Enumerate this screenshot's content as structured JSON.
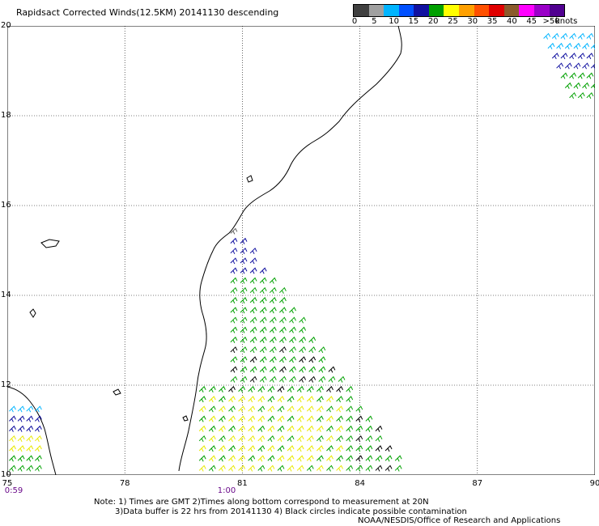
{
  "title": "Rapidsact Corrected Winds(12.5KM) 20141130 descending",
  "scale": {
    "labels": [
      "0",
      "5",
      "10",
      "15",
      "20",
      "25",
      "30",
      "35",
      "40",
      "45",
      ">50"
    ],
    "unit": "knots",
    "colors": [
      "#404040",
      "#a0a0a0",
      "#00b4ff",
      "#0050ff",
      "#1010a0",
      "#00a000",
      "#ffff00",
      "#ffa000",
      "#ff5000",
      "#e00000",
      "#8b5a2b",
      "#ff00ff",
      "#9a00c8",
      "#500090"
    ]
  },
  "axes": {
    "lon_ticks": [
      "75",
      "78",
      "81",
      "84",
      "87",
      "90"
    ],
    "lat_ticks": [
      "10",
      "12",
      "14",
      "16",
      "18",
      "20"
    ],
    "lon_range": [
      75,
      90
    ],
    "lat_range": [
      10,
      20
    ],
    "grid": true
  },
  "times": [
    {
      "label": "0:59",
      "lon": 75
    },
    {
      "label": "1:00",
      "lon": 80.6
    }
  ],
  "notes": {
    "line1": "Note: 1) Times are GMT 2)Times along bottom correspond to measurement at 20N",
    "line2": "3)Data buffer is 22 hrs from 20141130 4) Black circles indicate possible contamination",
    "line3": "NOAA/NESDIS/Office of Research and Applications"
  }
}
